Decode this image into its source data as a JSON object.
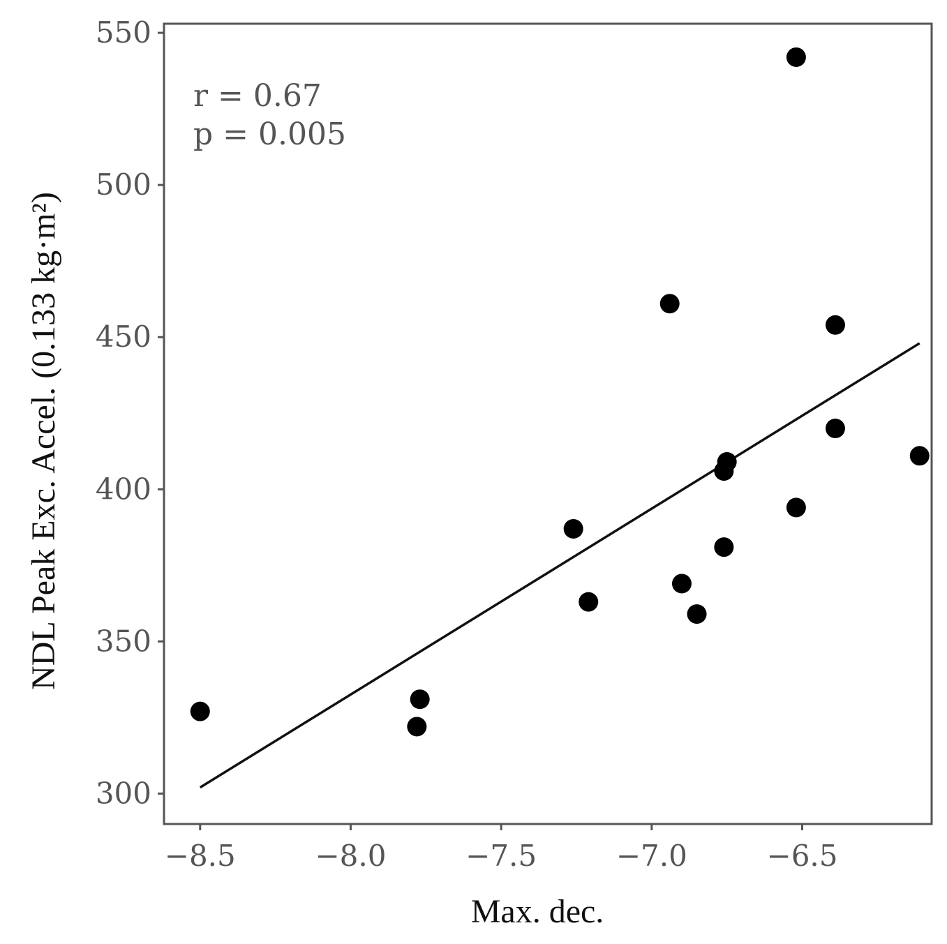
{
  "chart_data": {
    "type": "scatter",
    "title": "",
    "xlabel": "Max. dec.",
    "ylabel": "NDL Peak Exc. Accel. (0.133 kg·m²)",
    "xlim": [
      -8.62,
      -6.07
    ],
    "ylim": [
      290,
      553
    ],
    "xticks": [
      -8.5,
      -8.0,
      -7.5,
      -7.0,
      -6.5
    ],
    "xtick_labels": [
      "−8.5",
      "−8.0",
      "−7.5",
      "−7.0",
      "−6.5"
    ],
    "yticks": [
      300,
      350,
      400,
      450,
      500,
      550
    ],
    "ytick_labels": [
      "300",
      "350",
      "400",
      "450",
      "500",
      "550"
    ],
    "points": [
      {
        "x": -8.5,
        "y": 327
      },
      {
        "x": -7.78,
        "y": 322
      },
      {
        "x": -7.77,
        "y": 331
      },
      {
        "x": -7.26,
        "y": 387
      },
      {
        "x": -7.21,
        "y": 363
      },
      {
        "x": -6.94,
        "y": 461
      },
      {
        "x": -6.9,
        "y": 369
      },
      {
        "x": -6.85,
        "y": 359
      },
      {
        "x": -6.76,
        "y": 381
      },
      {
        "x": -6.76,
        "y": 406
      },
      {
        "x": -6.75,
        "y": 409
      },
      {
        "x": -6.52,
        "y": 542
      },
      {
        "x": -6.52,
        "y": 394
      },
      {
        "x": -6.39,
        "y": 454
      },
      {
        "x": -6.39,
        "y": 420
      },
      {
        "x": -6.11,
        "y": 411
      }
    ],
    "regression_line": {
      "x": [
        -8.5,
        -6.11
      ],
      "y": [
        302,
        448
      ]
    },
    "annotations": [
      "r = 0.67",
      "p = 0.005"
    ],
    "grid": false,
    "legend": "none",
    "colors": {
      "points": "#000000",
      "line": "#111111",
      "frame": "#555555",
      "tick_text": "#555555"
    }
  }
}
